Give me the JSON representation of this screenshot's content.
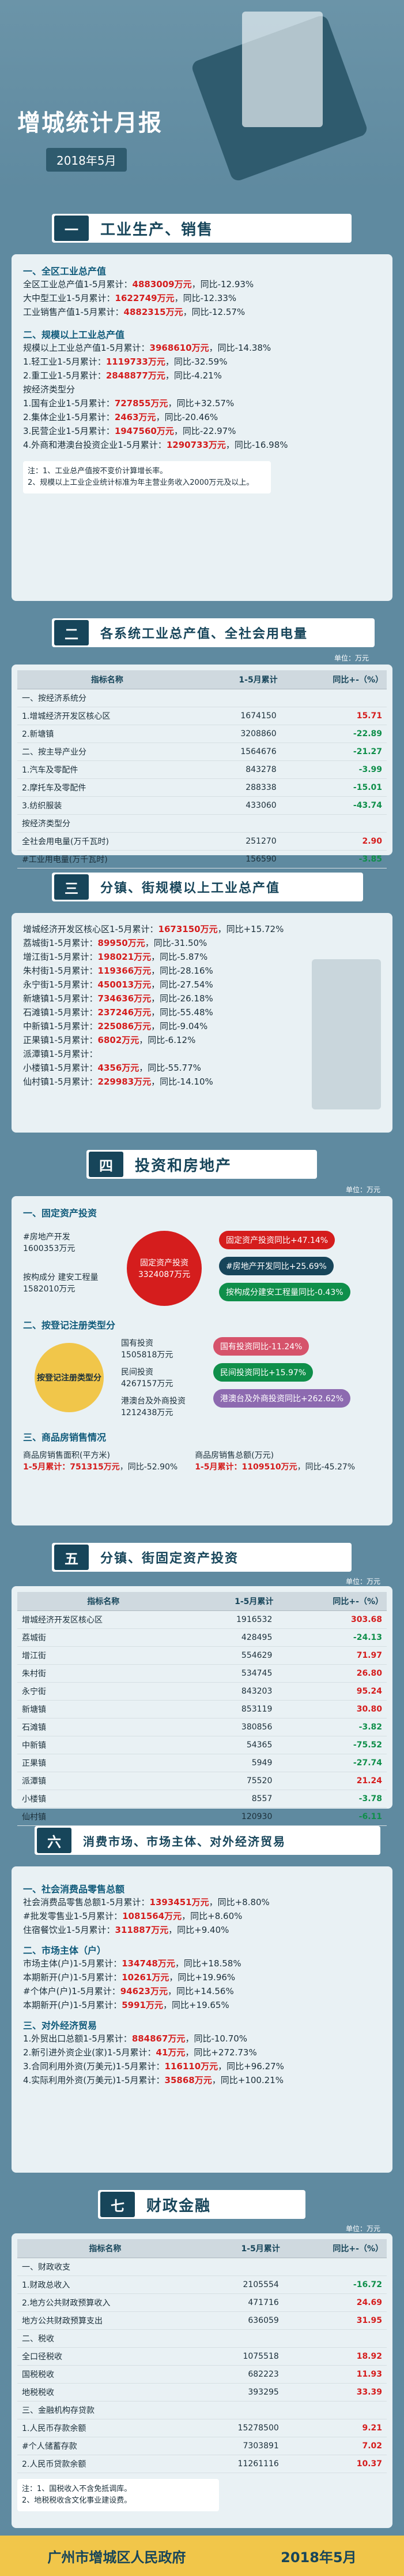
{
  "header": {
    "title": "增城统计月报",
    "date": "2018年5月"
  },
  "s1": {
    "num": "一",
    "title": "工业生产、销售",
    "g1": {
      "title": "一、全区工业总产值",
      "rows": [
        {
          "label": "全区工业总产值1-5月累计：",
          "value": "4883009万元",
          "change": "，同比-12.93%"
        },
        {
          "label": "大中型工业1-5月累计：",
          "value": "1622749万元",
          "change": "，同比-12.33%"
        },
        {
          "label": "工业销售产值1-5月累计：",
          "value": "4882315万元",
          "change": "，同比-12.57%"
        }
      ]
    },
    "g2": {
      "title": "二、规模以上工业总产值",
      "rows": [
        {
          "label": "规模以上工业总产值1-5月累计：",
          "value": "3968610万元",
          "change": "，同比-14.38%"
        },
        {
          "label": "1.轻工业1-5月累计：",
          "value": "1119733万元",
          "change": "，同比-32.59%"
        },
        {
          "label": "2.重工业1-5月累计：",
          "value": "2848877万元",
          "change": "，同比-4.21%"
        }
      ],
      "sub": "按经济类型分",
      "rows2": [
        {
          "label": "1.国有企业1-5月累计：",
          "value": "727855万元",
          "change": "，同比+32.57%"
        },
        {
          "label": "2.集体企业1-5月累计：",
          "value": "2463万元",
          "change": "，同比-20.46%"
        },
        {
          "label": "3.民营企业1-5月累计：",
          "value": "1947560万元",
          "change": "，同比-22.97%"
        },
        {
          "label": "4.外商和港澳台投资企业1-5月累计：",
          "value": "1290733万元",
          "change": "，同比-16.98%"
        }
      ]
    },
    "note": [
      "注：1、工业总产值按不变价计算增长率。",
      "2、规模以上工业企业统计标准为年主营业务收入2000万元及以上。"
    ]
  },
  "s2": {
    "num": "二",
    "title": "各系统工业总产值、全社会用电量",
    "unit": "单位：万元",
    "headers": [
      "指标名称",
      "1-5月累计",
      "同比+-（%）"
    ],
    "rows": [
      {
        "name": "一、按经济系统分",
        "value": "",
        "change": ""
      },
      {
        "name": "1.增城经济开发区核心区",
        "value": "1674150",
        "change": "15.71"
      },
      {
        "name": "2.新塘镇",
        "value": "3208860",
        "change": "-22.89"
      },
      {
        "name": "二、按主导产业分",
        "value": "1564676",
        "change": "-21.27"
      },
      {
        "name": "1.汽车及零配件",
        "value": "843278",
        "change": "-3.99"
      },
      {
        "name": "2.摩托车及零配件",
        "value": "288338",
        "change": "-15.01"
      },
      {
        "name": "3.纺织服装",
        "value": "433060",
        "change": "-43.74"
      },
      {
        "name": "按经济类型分",
        "value": "",
        "change": ""
      },
      {
        "name": "全社会用电量(万千瓦时)",
        "value": "251270",
        "change": "2.90"
      },
      {
        "name": "#工业用电量(万千瓦时)",
        "value": "156590",
        "change": "-3.85"
      }
    ]
  },
  "s3": {
    "num": "三",
    "title": "分镇、街规模以上工业总产值",
    "rows": [
      {
        "label": "增城经济开发区核心区1-5月累计：",
        "value": "1673150万元",
        "change": "，同比+15.72%"
      },
      {
        "label": "荔城街1-5月累计：",
        "value": "89950万元",
        "change": "，同比-31.50%"
      },
      {
        "label": "增江街1-5月累计：",
        "value": "198021万元",
        "change": "，同比-5.87%"
      },
      {
        "label": "朱村街1-5月累计：",
        "value": "119366万元",
        "change": "，同比-28.16%"
      },
      {
        "label": "永宁街1-5月累计：",
        "value": "450013万元",
        "change": "，同比-27.54%"
      },
      {
        "label": "新塘镇1-5月累计：",
        "value": "734636万元",
        "change": "，同比-26.18%"
      },
      {
        "label": "石滩镇1-5月累计：",
        "value": "237246万元",
        "change": "，同比-55.48%"
      },
      {
        "label": "中新镇1-5月累计：",
        "value": "225086万元",
        "change": "，同比-9.04%"
      },
      {
        "label": "正果镇1-5月累计：",
        "value": "6802万元",
        "change": "，同比-6.12%"
      },
      {
        "label": "派潭镇1-5月累计：",
        "value": "",
        "change": ""
      },
      {
        "label": "小楼镇1-5月累计：",
        "value": "4356万元",
        "change": "，同比-55.77%"
      },
      {
        "label": "仙村镇1-5月累计：",
        "value": "229983万元",
        "change": "，同比-14.10%"
      }
    ]
  },
  "s4": {
    "num": "四",
    "title": "投资和房地产",
    "unit": "单位：万元",
    "fi": {
      "title": "一、固定资产投资",
      "center": "固定资产投资",
      "center_value": "3324087万元",
      "left": [
        {
          "label": "#房地产开发",
          "value": "1600353万元"
        },
        {
          "label": "按构成分 建安工程量",
          "value": "1582010万元"
        }
      ],
      "right": [
        {
          "text": "固定资产投资同比+47.14%"
        },
        {
          "text": "#房地产开发同比+25.69%"
        },
        {
          "text": "按构成分建安工程量同比-0.43%"
        }
      ]
    },
    "reg": {
      "title": "二、按登记注册类型分",
      "center": "按登记注册类型分",
      "items": [
        {
          "label": "国有投资",
          "value": "1505818万元"
        },
        {
          "label": "民间投资",
          "value": "4267157万元"
        },
        {
          "label": "港澳台及外商投资",
          "value": "1212438万元"
        }
      ],
      "right": [
        {
          "text": "国有投资同比-11.24%"
        },
        {
          "text": "民间投资同比+15.97%"
        },
        {
          "text": "港澳台及外商投资同比+262.62%"
        }
      ]
    },
    "house": {
      "title": "三、商品房销售情况",
      "area_label": "商品房销售面积(平方米)",
      "area_value": "1-5月累计：751315万元",
      "area_change": "，同比-52.90%",
      "amount_label": "商品房销售总额(万元)",
      "amount_value": "1-5月累计：1109510万元",
      "amount_change": "，同比-45.27%"
    }
  },
  "s5": {
    "num": "五",
    "title": "分镇、街固定资产投资",
    "unit": "单位：万元",
    "headers": [
      "指标名称",
      "1-5月累计",
      "同比+-（%）"
    ],
    "rows": [
      {
        "name": "增城经济开发区核心区",
        "value": "1916532",
        "change": "303.68"
      },
      {
        "name": "荔城街",
        "value": "428495",
        "change": "-24.13"
      },
      {
        "name": "增江街",
        "value": "554629",
        "change": "71.97"
      },
      {
        "name": "朱村街",
        "value": "534745",
        "change": "26.80"
      },
      {
        "name": "永宁街",
        "value": "843203",
        "change": "95.24"
      },
      {
        "name": "新塘镇",
        "value": "853119",
        "change": "30.80"
      },
      {
        "name": "石滩镇",
        "value": "380856",
        "change": "-3.82"
      },
      {
        "name": "中新镇",
        "value": "54365",
        "change": "-75.52"
      },
      {
        "name": "正果镇",
        "value": "5949",
        "change": "-27.74"
      },
      {
        "name": "派潭镇",
        "value": "75520",
        "change": "21.24"
      },
      {
        "name": "小楼镇",
        "value": "8557",
        "change": "-3.78"
      },
      {
        "name": "仙村镇",
        "value": "120930",
        "change": "-6.11"
      }
    ]
  },
  "s6": {
    "num": "六",
    "title": "消费市场、市场主体、对外经济贸易",
    "g1": {
      "title": "一、社会消费品零售总额",
      "rows": [
        {
          "label": "社会消费品零售总额1-5月累计：",
          "value": "1393451万元",
          "change": "，同比+8.80%"
        },
        {
          "label": "#批发零售业1-5月累计：",
          "value": "1081564万元",
          "change": "，同比+8.60%"
        },
        {
          "label": "住宿餐饮业1-5月累计：",
          "value": "311887万元",
          "change": "，同比+9.40%"
        }
      ]
    },
    "g2": {
      "title": "二、市场主体（户）",
      "rows": [
        {
          "label": "市场主体(户)1-5月累计：",
          "value": "134748万元",
          "change": "，同比+18.58%"
        },
        {
          "label": "本期新开(户)1-5月累计：",
          "value": "10261万元",
          "change": "，同比+19.96%"
        },
        {
          "label": "#个体户(户)1-5月累计：",
          "value": "94623万元",
          "change": "，同比+14.56%"
        },
        {
          "label": "本期新开(户)1-5月累计：",
          "value": "5991万元",
          "change": "，同比+19.65%"
        }
      ]
    },
    "g3": {
      "title": "三、对外经济贸易",
      "rows": [
        {
          "label": "1.外贸出口总额1-5月累计：",
          "value": "884867万元",
          "change": "，同比-10.70%"
        },
        {
          "label": "2.新引进外资企业(家)1-5月累计：",
          "value": "41万元",
          "change": "，同比+272.73%"
        },
        {
          "label": "3.合同利用外资(万美元)1-5月累计：",
          "value": "116110万元",
          "change": "，同比+96.27%"
        },
        {
          "label": "4.实际利用外资(万美元)1-5月累计：",
          "value": "35868万元",
          "change": "，同比+100.21%"
        }
      ]
    }
  },
  "s7": {
    "num": "七",
    "title": "财政金融",
    "unit": "单位：万元",
    "headers": [
      "指标名称",
      "1-5月累计",
      "同比+-（%）"
    ],
    "rows": [
      {
        "name": "一、财政收支",
        "value": "",
        "change": ""
      },
      {
        "name": "1.财政总收入",
        "value": "2105554",
        "change": "-16.72"
      },
      {
        "name": "2.地方公共财政预算收入",
        "value": "471716",
        "change": "24.69"
      },
      {
        "name": "地方公共财政预算支出",
        "value": "636059",
        "change": "31.95"
      },
      {
        "name": "二、税收",
        "value": "",
        "change": ""
      },
      {
        "name": "全口径税收",
        "value": "1075518",
        "change": "18.92"
      },
      {
        "name": "国税税收",
        "value": "682223",
        "change": "11.93"
      },
      {
        "name": "地税税收",
        "value": "393295",
        "change": "33.39"
      },
      {
        "name": "三、金融机构存贷款",
        "value": "",
        "change": ""
      },
      {
        "name": "1.人民币存款余额",
        "value": "15278500",
        "change": "9.21"
      },
      {
        "name": "#个人储蓄存款",
        "value": "7303891",
        "change": "7.02"
      },
      {
        "name": "2.人民币贷款余额",
        "value": "11261116",
        "change": "10.37"
      }
    ],
    "note": [
      "注：1、国税收入不含免抵调库。",
      "2、地税税收含文化事业建设费。"
    ]
  },
  "footer": {
    "org": "广州市增城区人民政府",
    "date": "2018年5月"
  }
}
